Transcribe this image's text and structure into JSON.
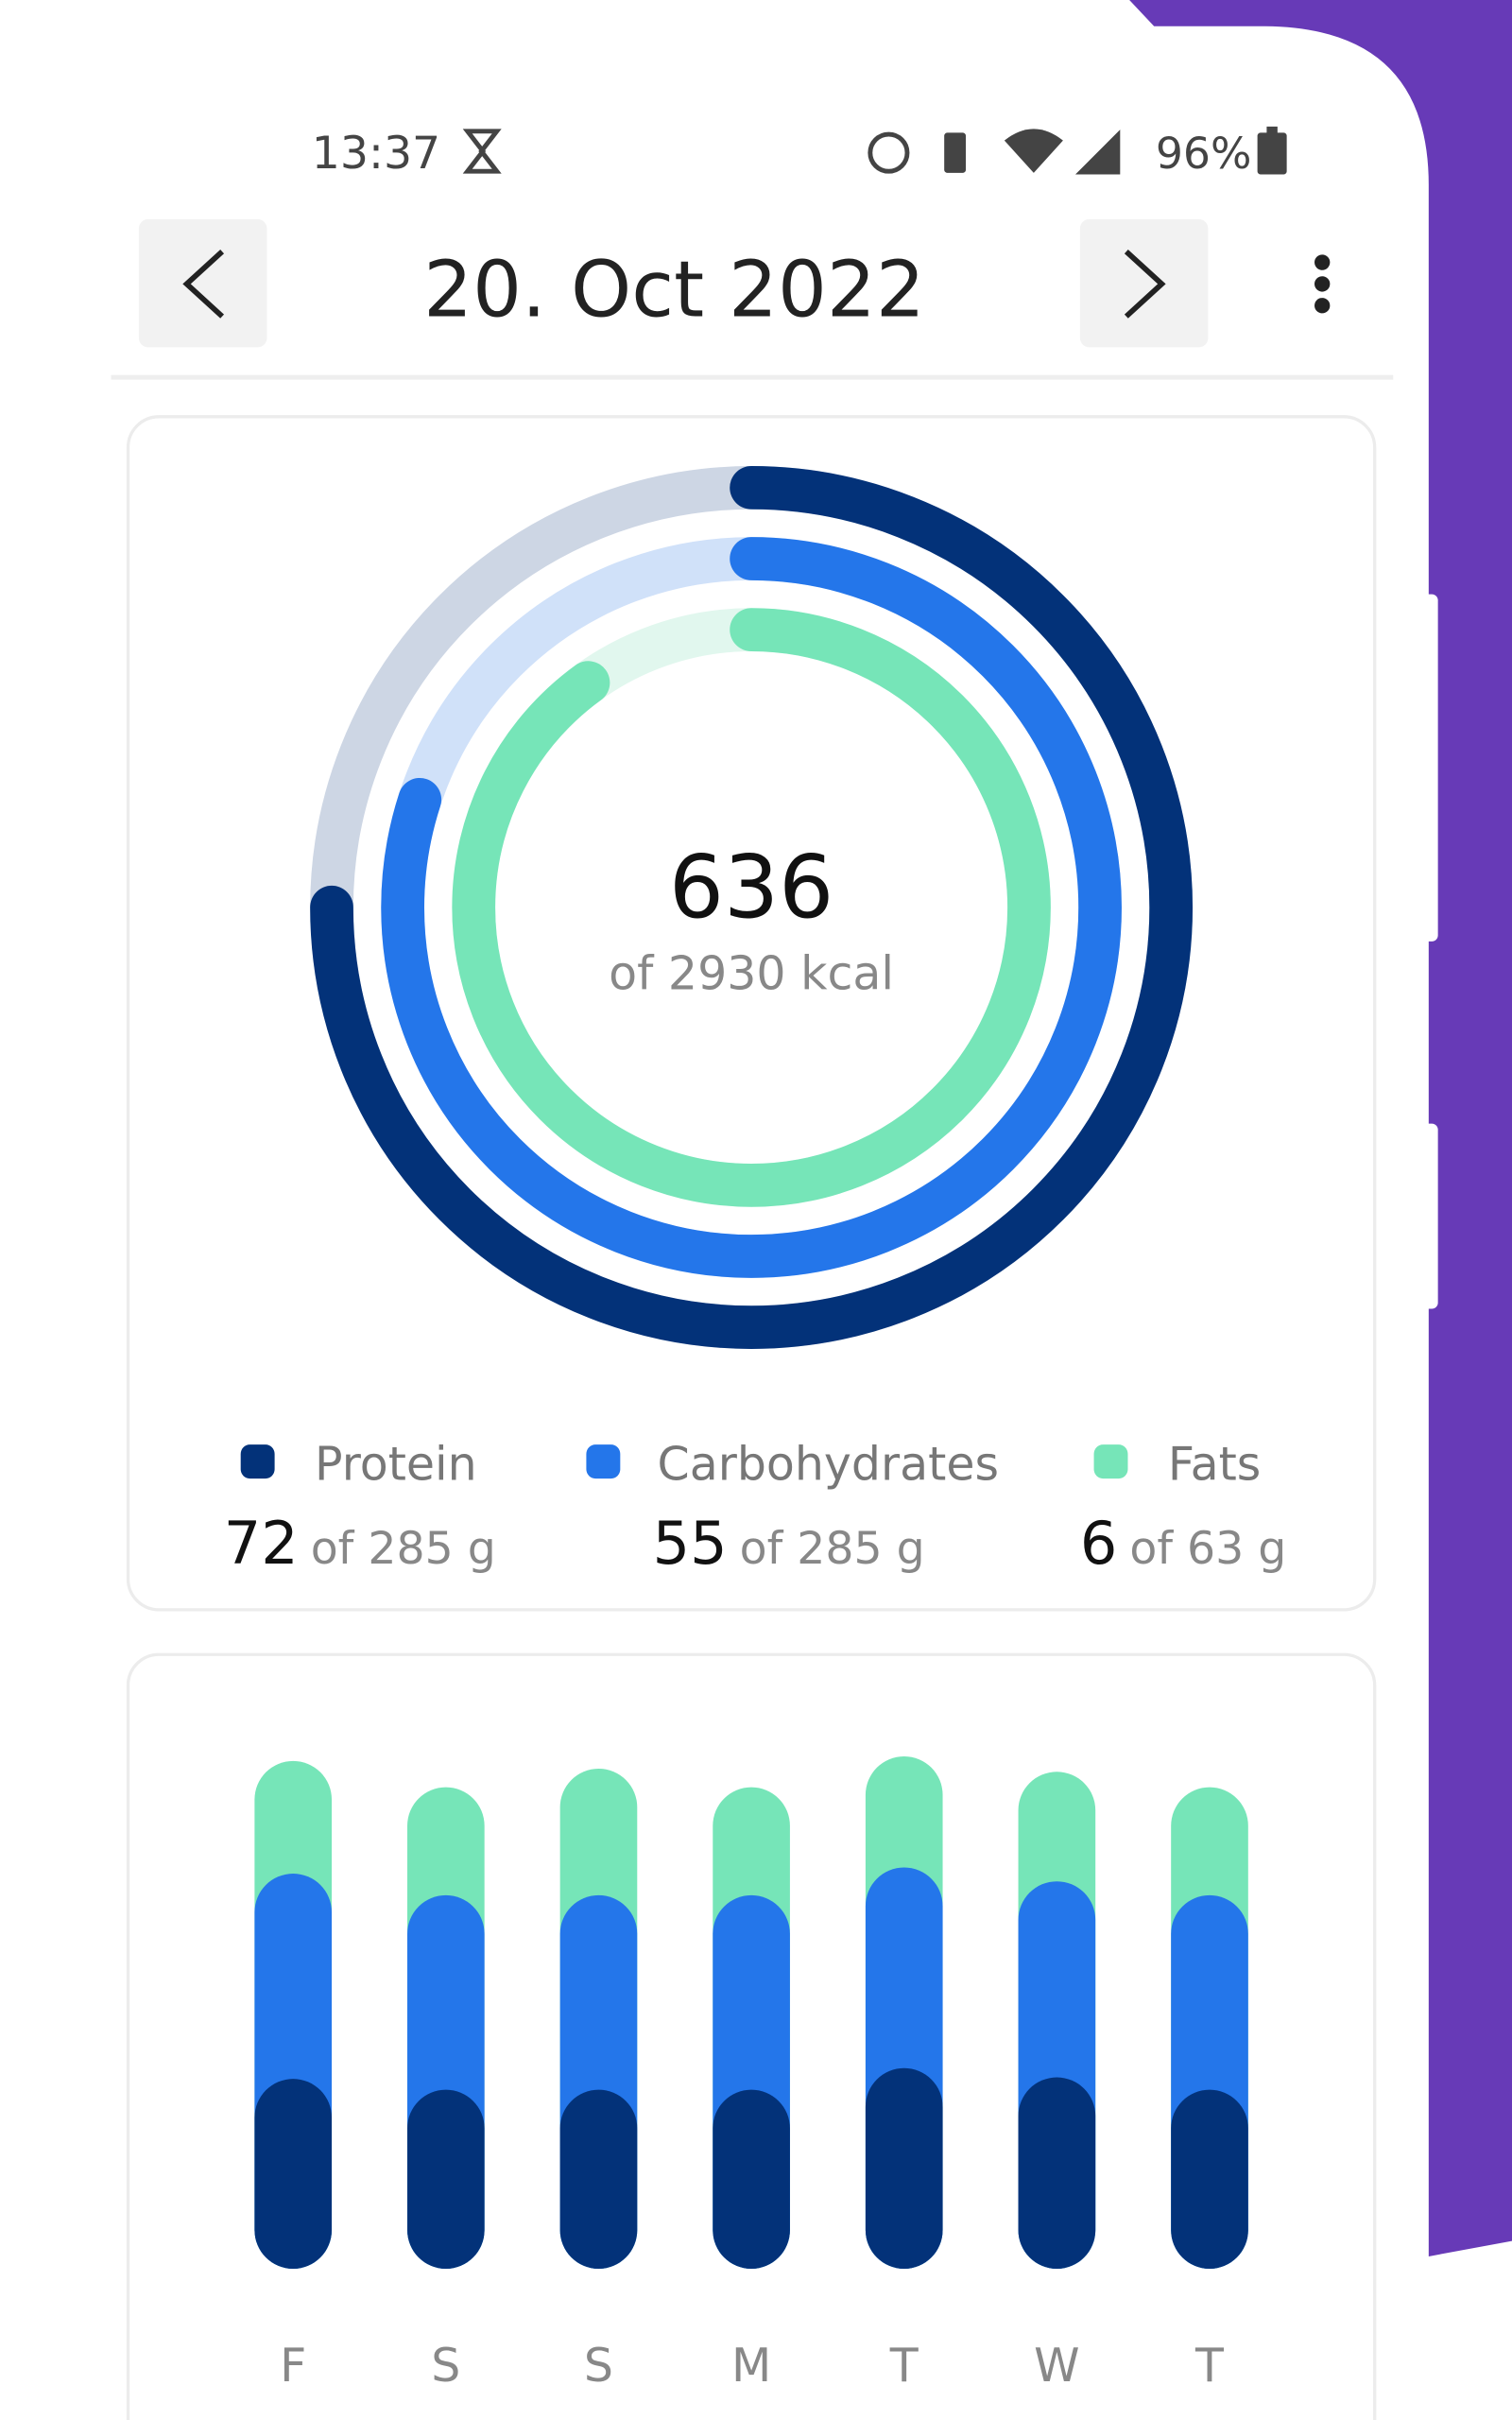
{
  "status_bar": {
    "time": "13:37",
    "battery": "96%"
  },
  "header": {
    "date": "20. Oct 2022"
  },
  "summary": {
    "calories": 636,
    "calorie_goal": "of 2930 kcal"
  },
  "macros": [
    {
      "name": "Protein",
      "value": 72,
      "goal": "of 285 g",
      "color": "#033279",
      "track_color": "#cdd6e4",
      "ring_percent": 75
    },
    {
      "name": "Carbohydrates",
      "value": 55,
      "goal": "of 285 g",
      "color": "#2476ea",
      "track_color": "#d0e1f9",
      "ring_percent": 80
    },
    {
      "name": "Fats",
      "value": 6,
      "goal": "of 63 g",
      "color": "#76e5b8",
      "track_color": "#e1f7ee",
      "ring_percent": 90
    }
  ],
  "weekly": {
    "type": "bar",
    "categories": [
      "F",
      "S",
      "S",
      "M",
      "T",
      "W",
      "T"
    ],
    "series": [
      {
        "color": "#033279",
        "values": [
          123,
          116,
          116,
          116,
          130,
          124,
          116
        ]
      },
      {
        "color": "#2476ea",
        "values": [
          133,
          126,
          126,
          126,
          130,
          127,
          126
        ]
      },
      {
        "color": "#76e5b8",
        "values": [
          73,
          70,
          82,
          70,
          72,
          71,
          70
        ]
      }
    ],
    "ylim": [
      0,
      340
    ]
  }
}
